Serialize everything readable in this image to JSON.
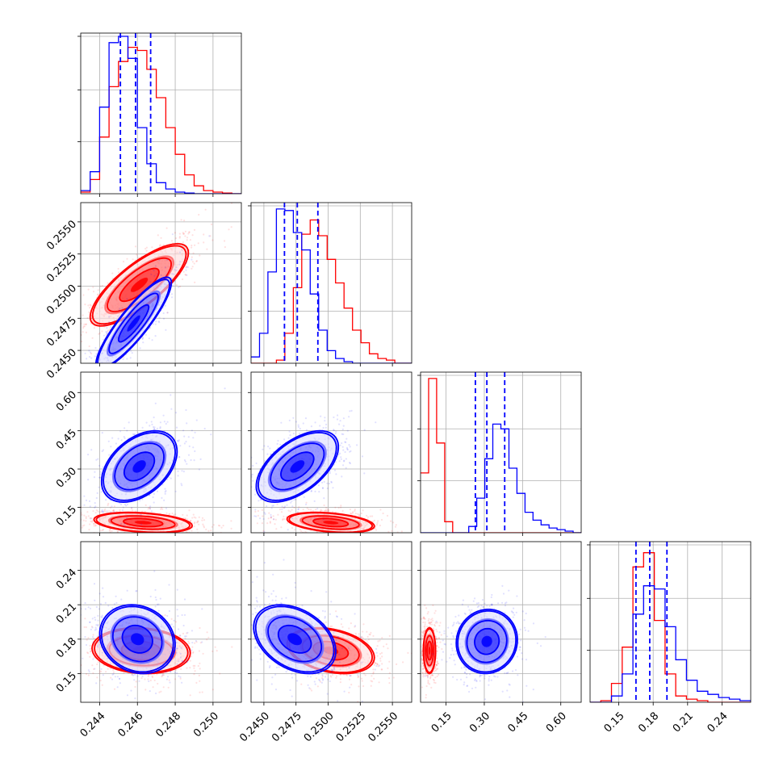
{
  "chart_data": {
    "type": "corner",
    "grid": true,
    "colors": {
      "blue": "#0000ff",
      "red": "#ff0000",
      "grid": "#b0b0b0",
      "axis": "#000000"
    },
    "parameters": [
      {
        "range": [
          0.243,
          0.2515
        ],
        "ticks": [
          0.244,
          0.246,
          0.248,
          0.25
        ],
        "tick_labels": [
          "0.244",
          "0.246",
          "0.248",
          "0.250"
        ]
      },
      {
        "range": [
          0.244,
          0.2565
        ],
        "ticks": [
          0.245,
          0.2475,
          0.25,
          0.2525,
          0.255
        ],
        "tick_labels": [
          "0.2450",
          "0.2475",
          "0.2500",
          "0.2525",
          "0.2550"
        ]
      },
      {
        "range": [
          0.05,
          0.68
        ],
        "ticks": [
          0.15,
          0.3,
          0.45,
          0.6
        ],
        "tick_labels": [
          "0.15",
          "0.30",
          "0.45",
          "0.60"
        ]
      },
      {
        "range": [
          0.125,
          0.265
        ],
        "ticks": [
          0.15,
          0.18,
          0.21,
          0.24
        ],
        "tick_labels": [
          "0.15",
          "0.18",
          "0.21",
          "0.24"
        ]
      }
    ],
    "diagonal": [
      {
        "hist_max": 1.0,
        "blue_quantiles": [
          0.2451,
          0.2459,
          0.2467
        ],
        "blue": [
          0.02,
          0.14,
          0.55,
          0.96,
          1.0,
          0.86,
          0.42,
          0.19,
          0.07,
          0.03,
          0.01,
          0.004,
          0.0,
          0.0,
          0.0,
          0.0,
          0.0
        ],
        "red": [
          0.01,
          0.09,
          0.36,
          0.68,
          0.84,
          0.93,
          0.91,
          0.79,
          0.61,
          0.42,
          0.25,
          0.12,
          0.05,
          0.02,
          0.01,
          0.004,
          0.0
        ]
      },
      {
        "hist_max": 1.0,
        "blue_quantiles": [
          0.2466,
          0.2476,
          0.2492
        ],
        "blue": [
          0.04,
          0.19,
          0.58,
          0.98,
          0.97,
          0.83,
          0.72,
          0.44,
          0.21,
          0.08,
          0.03,
          0.01,
          0.0,
          0.0,
          0.0,
          0.0,
          0.0,
          0.0,
          0.0
        ],
        "red": [
          0.0,
          0.0,
          0.0,
          0.02,
          0.19,
          0.48,
          0.82,
          0.91,
          0.81,
          0.66,
          0.51,
          0.35,
          0.21,
          0.13,
          0.06,
          0.03,
          0.02,
          0.0,
          0.0
        ]
      },
      {
        "hist_max": 1.0,
        "blue_quantiles": [
          0.265,
          0.31,
          0.38
        ],
        "blue": [
          0.0,
          0.0,
          0.0,
          0.0,
          0.0,
          0.0,
          0.04,
          0.22,
          0.47,
          0.69,
          0.66,
          0.41,
          0.25,
          0.13,
          0.08,
          0.05,
          0.03,
          0.02,
          0.01,
          0.0
        ],
        "red": [
          0.38,
          0.98,
          0.57,
          0.07,
          0.0,
          0.0,
          0.0,
          0.0,
          0.0,
          0.0,
          0.0,
          0.0,
          0.0,
          0.0,
          0.0,
          0.0,
          0.0,
          0.0,
          0.0,
          0.0
        ]
      },
      {
        "hist_max": 1.0,
        "blue_quantiles": [
          0.165,
          0.177,
          0.192
        ],
        "blue": [
          0.0,
          0.0,
          0.04,
          0.18,
          0.56,
          0.74,
          0.72,
          0.48,
          0.27,
          0.14,
          0.07,
          0.05,
          0.03,
          0.02,
          0.01
        ],
        "red": [
          0.0,
          0.01,
          0.12,
          0.35,
          0.86,
          0.95,
          0.52,
          0.18,
          0.04,
          0.02,
          0.01,
          0.0,
          0.0,
          0.0,
          0.0
        ]
      }
    ],
    "pairs": [
      {
        "i": 1,
        "j": 0,
        "blue": {
          "mean": [
            0.2458,
            0.2471
          ],
          "sd": [
            0.001,
            0.0018
          ],
          "rho": 0.88
        },
        "red": {
          "mean": [
            0.2461,
            0.2501
          ],
          "sd": [
            0.0013,
            0.0016
          ],
          "rho": 0.78
        }
      },
      {
        "i": 2,
        "j": 0,
        "blue": {
          "mean": [
            0.2461,
            0.31
          ],
          "sd": [
            0.001,
            0.07
          ],
          "rho": 0.42
        },
        "red": {
          "mean": [
            0.2463,
            0.09
          ],
          "sd": [
            0.0013,
            0.02
          ],
          "rho": -0.3
        }
      },
      {
        "i": 2,
        "j": 1,
        "blue": {
          "mean": [
            0.2476,
            0.31
          ],
          "sd": [
            0.0016,
            0.07
          ],
          "rho": 0.55
        },
        "red": {
          "mean": [
            0.2502,
            0.09
          ],
          "sd": [
            0.0017,
            0.02
          ],
          "rho": -0.35
        }
      },
      {
        "i": 3,
        "j": 0,
        "blue": {
          "mean": [
            0.246,
            0.18
          ],
          "sd": [
            0.001,
            0.015
          ],
          "rho": -0.15
        },
        "red": {
          "mean": [
            0.2462,
            0.17
          ],
          "sd": [
            0.0013,
            0.01
          ],
          "rho": -0.1
        }
      },
      {
        "i": 3,
        "j": 1,
        "blue": {
          "mean": [
            0.2474,
            0.18
          ],
          "sd": [
            0.0016,
            0.015
          ],
          "rho": -0.35
        },
        "red": {
          "mean": [
            0.2502,
            0.17
          ],
          "sd": [
            0.0017,
            0.01
          ],
          "rho": -0.3
        }
      },
      {
        "i": 3,
        "j": 2,
        "blue": {
          "mean": [
            0.31,
            0.178
          ],
          "sd": [
            0.06,
            0.014
          ],
          "rho": 0.05
        },
        "red": {
          "mean": [
            0.085,
            0.17
          ],
          "sd": [
            0.012,
            0.01
          ],
          "rho": 0.0
        }
      }
    ]
  }
}
